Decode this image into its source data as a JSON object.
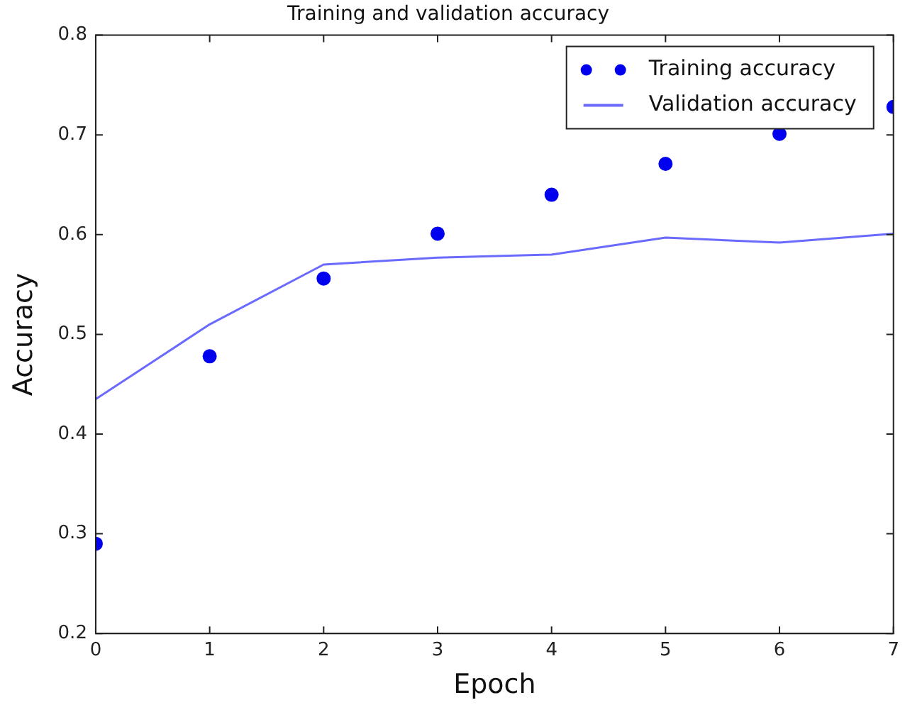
{
  "chart_data": {
    "type": "line",
    "title": "Training and validation accuracy",
    "xlabel": "Epoch",
    "ylabel": "Accuracy",
    "x": [
      0,
      1,
      2,
      3,
      4,
      5,
      6,
      7
    ],
    "series": [
      {
        "name": "Training accuracy",
        "type": "scatter",
        "color": "#0000ee",
        "marker": "circle",
        "values": [
          0.29,
          0.478,
          0.556,
          0.601,
          0.64,
          0.671,
          0.701,
          0.728
        ]
      },
      {
        "name": "Validation accuracy",
        "type": "line",
        "color": "#6a6aff",
        "marker": "none",
        "line_style": "solid",
        "values": [
          0.435,
          0.51,
          0.57,
          0.577,
          0.58,
          0.597,
          0.592,
          0.601
        ]
      }
    ],
    "xlim": [
      0,
      7
    ],
    "xticks": [
      0,
      1,
      2,
      3,
      4,
      5,
      6,
      7
    ],
    "ylim": [
      0.2,
      0.8
    ],
    "yticks": [
      0.2,
      0.3,
      0.4,
      0.5,
      0.6,
      0.7,
      0.8
    ],
    "grid": false,
    "legend": "top right"
  }
}
